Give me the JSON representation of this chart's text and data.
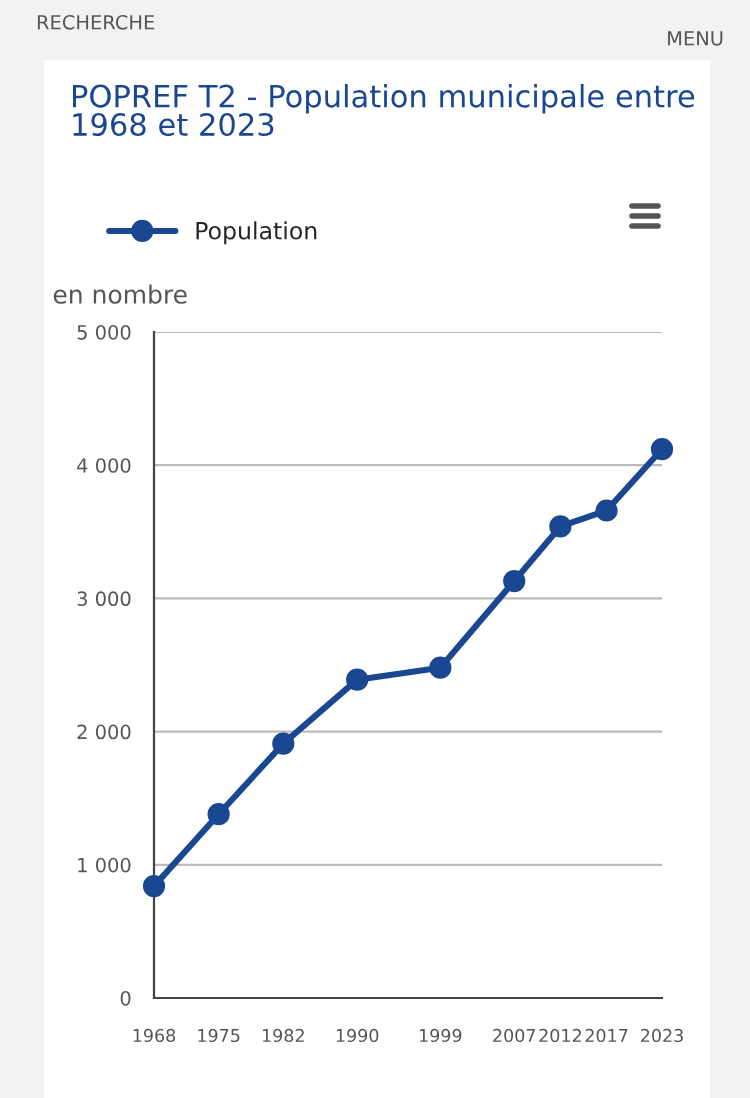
{
  "chart_data": {
    "type": "line",
    "title": "POPREF T2 - Population municipale entre\n1968 et 2023",
    "ylabel": "en nombre",
    "annotations": [
      "RECHERCHE",
      "MENU"
    ],
    "x": [
      1968,
      1975,
      1982,
      1990,
      1999,
      2007,
      2012,
      2017,
      2023
    ],
    "series": [
      {
        "name": "Population",
        "color": "#1a4791",
        "values": [
          840,
          1380,
          1910,
          2390,
          2480,
          3130,
          3540,
          3660,
          4120
        ]
      }
    ],
    "xlim": [
      1968,
      2023
    ],
    "xticks": [
      1968,
      1975,
      1982,
      1990,
      1999,
      2007,
      2012,
      2017,
      2023
    ],
    "ylim": [
      0,
      5000
    ],
    "yticks": [
      0,
      {
        "value": 1000,
        "label": "1 000"
      },
      {
        "value": 2000,
        "label": "2 000"
      },
      {
        "value": 3000,
        "label": "3 000"
      },
      {
        "value": 4000,
        "label": "4 000"
      },
      {
        "value": 5000,
        "label": "5 000"
      }
    ],
    "grid": "y",
    "legend": "top left",
    "marker": "circle",
    "line_style": "solid"
  }
}
